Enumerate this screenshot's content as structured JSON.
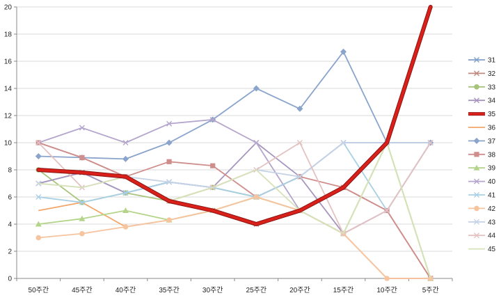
{
  "chart_data": {
    "type": "line",
    "categories": [
      "50주간",
      "45주간",
      "40주간",
      "35주간",
      "30주간",
      "25주간",
      "20주간",
      "15주간",
      "10주간",
      "5주간"
    ],
    "ylim": [
      0,
      20
    ],
    "yticks": [
      0,
      2,
      4,
      6,
      8,
      10,
      12,
      14,
      16,
      18,
      20
    ],
    "grid": "horizontal",
    "legend_position": "right",
    "series": [
      {
        "name": "31",
        "color": "#7fa0c8",
        "marker": "x",
        "values": [
          7,
          7.8,
          6.3,
          7.1,
          6.7,
          6,
          7.5,
          10,
          10,
          10
        ]
      },
      {
        "name": "32",
        "color": "#c08a80",
        "marker": "x",
        "values": [
          10,
          8.9,
          7.5,
          5.7,
          5,
          4,
          5,
          6.7,
          5,
          0
        ]
      },
      {
        "name": "33",
        "color": "#a8c47c",
        "marker": "circle",
        "values": [
          8,
          5.6,
          6.3,
          5.7,
          6.7,
          6,
          5,
          3.3,
          10,
          0
        ]
      },
      {
        "name": "34",
        "color": "#a796be",
        "marker": "x",
        "values": [
          7,
          7.8,
          6.3,
          7.1,
          6.7,
          10,
          7.5,
          3.3,
          5,
          10
        ]
      },
      {
        "name": "35",
        "color": "#d9201a",
        "marker": "none",
        "bold": true,
        "values": [
          8,
          7.8,
          7.5,
          5.7,
          5,
          4,
          5,
          6.7,
          10,
          20
        ]
      },
      {
        "name": "36",
        "color": "#f2a66a",
        "marker": "none",
        "values": [
          5,
          5.6,
          3.8,
          4.3,
          5,
          6,
          5,
          3.3,
          0,
          0
        ]
      },
      {
        "name": "37",
        "color": "#8aa4cc",
        "marker": "diamond",
        "values": [
          9,
          8.9,
          8.8,
          10,
          11.7,
          14,
          12.5,
          16.7,
          10,
          10
        ]
      },
      {
        "name": "38",
        "color": "#cf8d8b",
        "marker": "square",
        "values": [
          10,
          8.9,
          7.5,
          8.6,
          8.3,
          6,
          7.5,
          6.7,
          5,
          0
        ]
      },
      {
        "name": "39",
        "color": "#b4d48a",
        "marker": "triangle",
        "values": [
          4,
          4.4,
          5,
          4.3,
          5,
          6,
          5,
          3.3,
          10,
          0
        ]
      },
      {
        "name": "40",
        "color": "#b4a6cc",
        "marker": "x",
        "values": [
          10,
          11.1,
          10,
          11.4,
          11.7,
          10,
          5,
          3.3,
          5,
          10
        ]
      },
      {
        "name": "41",
        "color": "#a8d0e4",
        "marker": "x",
        "values": [
          6,
          5.6,
          6.3,
          7.1,
          6.7,
          6,
          7.5,
          10,
          5,
          10
        ]
      },
      {
        "name": "42",
        "color": "#f7c4a0",
        "marker": "circle",
        "values": [
          3,
          3.3,
          3.8,
          4.3,
          5,
          6,
          5,
          3.3,
          0,
          0
        ]
      },
      {
        "name": "43",
        "color": "#c6d2e6",
        "marker": "x",
        "values": [
          7,
          6.7,
          7.5,
          7.1,
          6.7,
          8,
          7.5,
          10,
          10,
          10
        ]
      },
      {
        "name": "44",
        "color": "#e4c2c2",
        "marker": "x",
        "values": [
          10,
          6.7,
          7.5,
          5.7,
          6.7,
          8,
          10,
          3.3,
          5,
          10
        ]
      },
      {
        "name": "45",
        "color": "#d6e2b8",
        "marker": "none",
        "values": [
          7,
          6.7,
          7.5,
          5.7,
          6.7,
          8,
          5,
          3.3,
          10,
          0
        ]
      }
    ]
  }
}
